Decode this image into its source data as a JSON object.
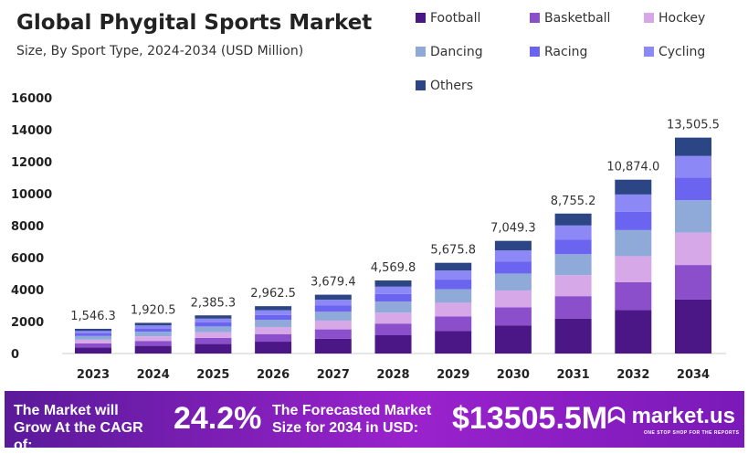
{
  "chart_data": {
    "type": "bar",
    "stacked": true,
    "title": "Global Phygital Sports Market",
    "subtitle": "Size, By Sport Type, 2024-2034 (USD Million)",
    "categories": [
      "2023",
      "2024",
      "2025",
      "2026",
      "2027",
      "2028",
      "2029",
      "2030",
      "2031",
      "2032",
      "2034"
    ],
    "totals": [
      1546.3,
      1920.5,
      2385.3,
      2962.5,
      3679.4,
      4569.8,
      5675.8,
      7049.3,
      8755.2,
      10874.0,
      13505.5
    ],
    "total_labels": [
      "1,546.3",
      "1,920.5",
      "2,385.3",
      "2,962.5",
      "3,679.4",
      "4,569.8",
      "5,675.8",
      "7,049.3",
      "8,755.2",
      "10,874.0",
      "13,505.5"
    ],
    "ylim": [
      0,
      16000
    ],
    "yticks": [
      "0",
      "2000",
      "4000",
      "6000",
      "8000",
      "10000",
      "12000",
      "14000",
      "16000"
    ],
    "grid": false,
    "legend_position": "top-right",
    "series": [
      {
        "name": "Football",
        "color": "#4b1786",
        "values": [
          387,
          480,
          596,
          741,
          920,
          1143,
          1419,
          1762,
          2189,
          2719,
          3376
        ]
      },
      {
        "name": "Basketball",
        "color": "#8b4fcc",
        "values": [
          247,
          307,
          382,
          474,
          589,
          731,
          908,
          1128,
          1401,
          1740,
          2161
        ]
      },
      {
        "name": "Hockey",
        "color": "#d6a8e8",
        "values": [
          232,
          288,
          358,
          444,
          552,
          686,
          851,
          1057,
          1313,
          1631,
          2026
        ]
      },
      {
        "name": "Dancing",
        "color": "#8fa9d9",
        "values": [
          232,
          288,
          358,
          444,
          552,
          686,
          851,
          1057,
          1313,
          1631,
          2026
        ]
      },
      {
        "name": "Racing",
        "color": "#6b64f0",
        "values": [
          162,
          202,
          251,
          311,
          386,
          480,
          596,
          740,
          919,
          1142,
          1418
        ]
      },
      {
        "name": "Cycling",
        "color": "#8c88f6",
        "values": [
          155,
          192,
          239,
          296,
          368,
          457,
          568,
          705,
          876,
          1087,
          1351
        ]
      },
      {
        "name": "Others",
        "color": "#2b4585",
        "values": [
          131,
          163,
          203,
          252,
          313,
          388,
          482,
          599,
          744,
          924,
          1148
        ]
      }
    ]
  },
  "banner": {
    "cagr_text": "The Market will Grow At the CAGR of:",
    "cagr_value": "24.2%",
    "forecast_text": "The Forecasted Market Size for 2034 in USD:",
    "forecast_value": "$13505.5M",
    "logo": "market.us",
    "tagline": "ONE STOP SHOP FOR THE REPORTS"
  }
}
